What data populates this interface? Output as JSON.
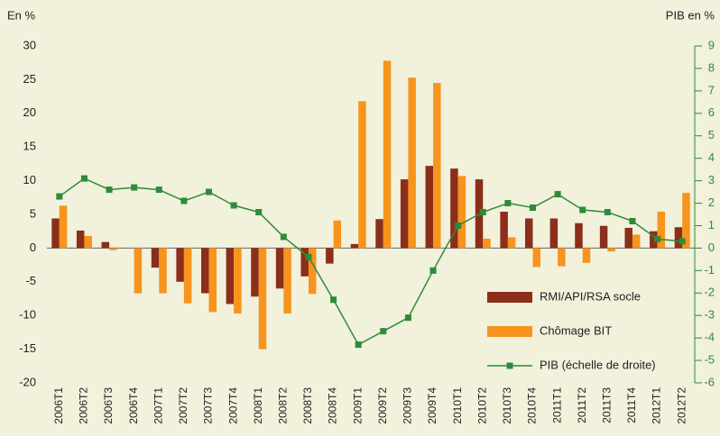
{
  "chart_data": {
    "type": "bar",
    "y_label": "En %",
    "y2_label": "PIB en %",
    "categories": [
      "2006T1",
      "2006T2",
      "2006T3",
      "2006T4",
      "2007T1",
      "2007T2",
      "2007T3",
      "2007T4",
      "2008T1",
      "2008T2",
      "2008T3",
      "2008T4",
      "2009T1",
      "2009T2",
      "2009T3",
      "2009T4",
      "2010T1",
      "2010T2",
      "2010T3",
      "2010T4",
      "2011T1",
      "2011T2",
      "2011T3",
      "2011T4",
      "2012T1",
      "2012T2"
    ],
    "series": [
      {
        "name": "RMI/API/RSA socle",
        "color": "#8b2e1a",
        "values": [
          4.4,
          2.6,
          0.9,
          0,
          -2.9,
          -5.0,
          -6.7,
          -8.3,
          -7.2,
          -6.0,
          -4.2,
          -2.3,
          0.6,
          4.3,
          10.2,
          12.2,
          11.8,
          10.2,
          5.4,
          4.4,
          4.4,
          3.7,
          3.3,
          3.0,
          2.5,
          3.1
        ]
      },
      {
        "name": "Chômage BIT",
        "color": "#f7941d",
        "values": [
          6.3,
          1.8,
          -0.3,
          -6.7,
          -6.7,
          -8.2,
          -9.5,
          -9.7,
          -15.0,
          -9.7,
          -6.8,
          4.1,
          21.8,
          27.8,
          25.3,
          24.5,
          10.7,
          1.4,
          1.6,
          -2.8,
          -2.7,
          -2.2,
          -0.5,
          2.0,
          5.4,
          8.2
        ]
      },
      {
        "name": "PIB (échelle de droite)",
        "color": "#2e8b3a",
        "type": "line",
        "axis": "y2",
        "values": [
          2.3,
          3.1,
          2.6,
          2.7,
          2.6,
          2.1,
          2.5,
          1.9,
          1.6,
          0.5,
          -0.4,
          -2.3,
          -4.3,
          -3.7,
          -3.1,
          -1.0,
          1.0,
          1.6,
          2.0,
          1.8,
          2.4,
          1.7,
          1.6,
          1.2,
          0.4,
          0.3
        ]
      }
    ],
    "ylim": [
      -20,
      30
    ],
    "yticks": [
      -20,
      -15,
      -10,
      -5,
      0,
      5,
      10,
      15,
      20,
      25,
      30
    ],
    "y2lim": [
      -6,
      9
    ],
    "y2ticks": [
      -6,
      -5,
      -4,
      -3,
      -2,
      -1,
      0,
      1,
      2,
      3,
      4,
      5,
      6,
      7,
      8,
      9
    ],
    "legend": "lower right",
    "grid": false
  }
}
